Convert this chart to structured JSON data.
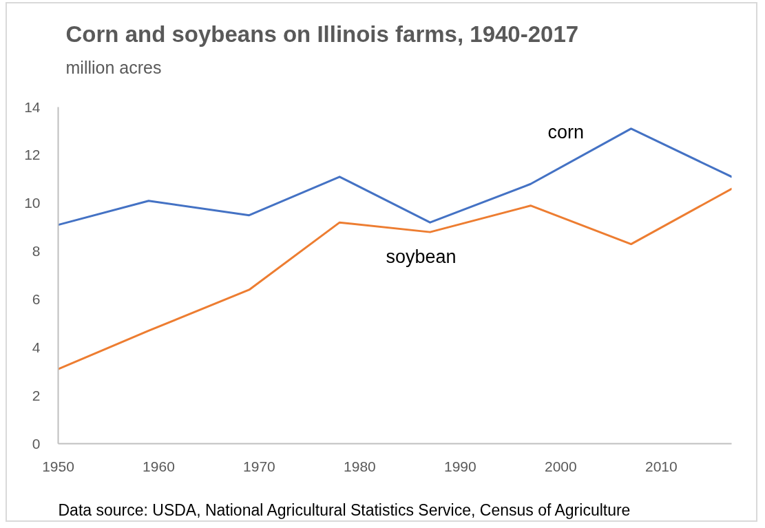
{
  "chart_data": {
    "type": "line",
    "title": "Corn and soybeans on Illinois farms, 1940-2017",
    "subtitle": "million acres",
    "x": [
      1950,
      1959,
      1969,
      1978,
      1987,
      1997,
      2007,
      2017
    ],
    "series": [
      {
        "name": "corn",
        "color": "#4472c4",
        "values": [
          9.1,
          10.1,
          9.5,
          11.1,
          9.2,
          10.8,
          13.1,
          11.1
        ]
      },
      {
        "name": "soybean",
        "color": "#ed7d31",
        "values": [
          3.1,
          4.7,
          6.4,
          9.2,
          8.8,
          9.9,
          8.3,
          10.6
        ]
      }
    ],
    "xlim": [
      1950,
      2017
    ],
    "xticks": [
      1950,
      1960,
      1970,
      1980,
      1990,
      2000,
      2010
    ],
    "ylim": [
      0,
      14
    ],
    "yticks": [
      0,
      2,
      4,
      6,
      8,
      10,
      12,
      14
    ],
    "grid": false,
    "legend": false,
    "line_style": "solid",
    "annotations": [
      "Data source: USDA, National Agricultural Statistics Service, Census of Agriculture"
    ]
  }
}
